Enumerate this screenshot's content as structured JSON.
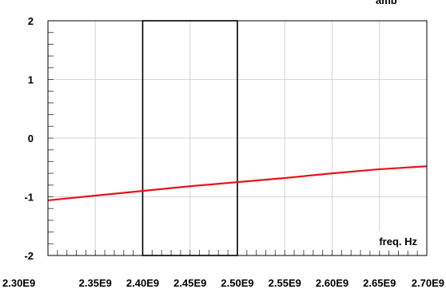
{
  "chart_data": {
    "type": "line",
    "title": "",
    "xlabel": "freq. Hz",
    "ylabel": "",
    "xlim": [
      2300000000.0,
      2700000000.0
    ],
    "ylim": [
      -2,
      2
    ],
    "x_ticks": [
      {
        "value": 2300000000.0,
        "label": "2.30E9"
      },
      {
        "value": 2350000000.0,
        "label": "2.35E9"
      },
      {
        "value": 2400000000.0,
        "label": "2.40E9"
      },
      {
        "value": 2450000000.0,
        "label": "2.45E9"
      },
      {
        "value": 2500000000.0,
        "label": "2.50E9"
      },
      {
        "value": 2550000000.0,
        "label": "2.55E9"
      },
      {
        "value": 2600000000.0,
        "label": "2.60E9"
      },
      {
        "value": 2650000000.0,
        "label": "2.65E9"
      },
      {
        "value": 2700000000.0,
        "label": "2.70E9"
      }
    ],
    "y_ticks": [
      {
        "value": 2,
        "label": "2"
      },
      {
        "value": 1,
        "label": "1"
      },
      {
        "value": 0,
        "label": "0"
      },
      {
        "value": -1,
        "label": "-1"
      },
      {
        "value": -2,
        "label": "-2"
      }
    ],
    "grid": true,
    "series": [
      {
        "color": "#e8141a",
        "x": [
          2300000000.0,
          2350000000.0,
          2400000000.0,
          2450000000.0,
          2500000000.0,
          2550000000.0,
          2600000000.0,
          2650000000.0,
          2700000000.0
        ],
        "y": [
          -1.06,
          -0.98,
          -0.9,
          -0.82,
          -0.75,
          -0.68,
          -0.6,
          -0.53,
          -0.48
        ]
      }
    ],
    "annotations": [
      {
        "type": "rect",
        "x": [
          2400000000.0,
          2500000000.0
        ],
        "y": [
          -2,
          2
        ],
        "color": "#000000"
      }
    ]
  },
  "header_fragment": "amb"
}
